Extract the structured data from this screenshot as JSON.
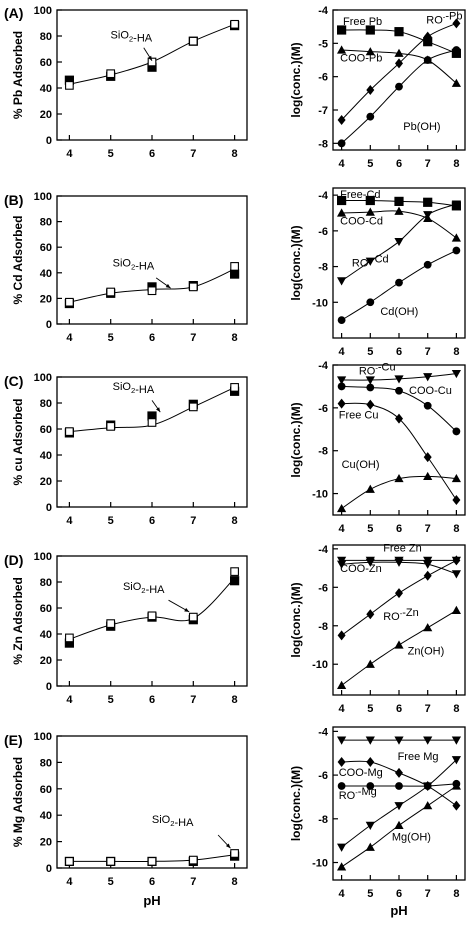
{
  "colors": {
    "marker": "#000000",
    "line": "#000000",
    "frame": "#000000",
    "background": "#ffffff"
  },
  "chart_data": [
    {
      "type": "scatter",
      "panel_label": "(A)",
      "ylabel": "% Pb Adsorbed",
      "xlabel": "",
      "xlim": [
        3.7,
        8.3
      ],
      "ylim": [
        0,
        100
      ],
      "xticks": [
        "4",
        "5",
        "6",
        "7",
        "8"
      ],
      "yticks": [
        "0",
        "20",
        "40",
        "60",
        "80",
        "100"
      ],
      "x": [
        4,
        5,
        6,
        7,
        8
      ],
      "series": [
        {
          "marker": "filled-square",
          "values": [
            46,
            49,
            56,
            76,
            88
          ]
        },
        {
          "marker": "open-square",
          "values": [
            42,
            51,
            60,
            76,
            89
          ]
        }
      ],
      "fit_curve": {
        "x": [
          4,
          5,
          6,
          7,
          8
        ],
        "values": [
          43,
          50,
          60,
          76,
          89
        ]
      },
      "annotations": [
        {
          "text": "SiO₂-HA"
        }
      ]
    },
    {
      "type": "line",
      "panel_label": "",
      "ylabel": "log(conc.)(M)",
      "xlabel": "",
      "xlim": [
        3.7,
        8.3
      ],
      "ylim": [
        -8.2,
        -4
      ],
      "xticks": [
        "4",
        "5",
        "6",
        "7",
        "8"
      ],
      "yticks": [
        "-4",
        "-5",
        "-6",
        "-7",
        "-8"
      ],
      "x": [
        4,
        5,
        6,
        7,
        8
      ],
      "series": [
        {
          "name": "Free Pb",
          "marker": "filled-square",
          "values": [
            -4.6,
            -4.6,
            -4.65,
            -4.95,
            -5.3
          ]
        },
        {
          "name": "RO⁻-Pb",
          "marker": "filled-diamond",
          "values": [
            -7.3,
            -6.4,
            -5.6,
            -4.8,
            -4.4
          ]
        },
        {
          "name": "COO-Pb",
          "marker": "filled-triangle-up",
          "values": [
            -5.2,
            -5.25,
            -5.3,
            -5.5,
            -6.2
          ]
        },
        {
          "name": "Pb(OH)",
          "marker": "filled-circle",
          "values": [
            -8.0,
            -7.2,
            -6.3,
            -5.5,
            -5.2
          ]
        }
      ]
    },
    {
      "type": "scatter",
      "panel_label": "(B)",
      "ylabel": "% Cd  Adsorbed",
      "xlabel": "",
      "xlim": [
        3.7,
        8.3
      ],
      "ylim": [
        0,
        100
      ],
      "xticks": [
        "4",
        "5",
        "6",
        "7",
        "8"
      ],
      "yticks": [
        "0",
        "20",
        "40",
        "60",
        "80",
        "100"
      ],
      "x": [
        4,
        5,
        6,
        7,
        8
      ],
      "series": [
        {
          "marker": "filled-square",
          "values": [
            16,
            24,
            29,
            30,
            39
          ]
        },
        {
          "marker": "open-square",
          "values": [
            17,
            25,
            26,
            29,
            45
          ]
        }
      ],
      "fit_curve": {
        "x": [
          4,
          5,
          6,
          7,
          8
        ],
        "values": [
          17,
          24,
          27,
          29,
          43
        ]
      },
      "annotations": [
        {
          "text": "SiO₂-HA"
        }
      ]
    },
    {
      "type": "line",
      "panel_label": "",
      "ylabel": "log(conc.)(M)",
      "xlabel": "",
      "xlim": [
        3.7,
        8.3
      ],
      "ylim": [
        -12,
        -3.6
      ],
      "xticks": [
        "4",
        "5",
        "6",
        "7",
        "8"
      ],
      "yticks": [
        "-4",
        "-6",
        "-8",
        "-10"
      ],
      "x": [
        4,
        5,
        6,
        7,
        8
      ],
      "series": [
        {
          "name": "Free-Cd",
          "marker": "filled-square",
          "values": [
            -4.3,
            -4.3,
            -4.35,
            -4.4,
            -4.6
          ]
        },
        {
          "name": "COO-Cd",
          "marker": "filled-triangle-up",
          "values": [
            -5.0,
            -4.95,
            -4.9,
            -5.3,
            -6.4
          ]
        },
        {
          "name": "RO⁻-Cd",
          "marker": "filled-triangle-down",
          "values": [
            -8.8,
            -7.7,
            -6.6,
            -5.1,
            -4.5
          ]
        },
        {
          "name": "Cd(OH)",
          "marker": "filled-circle",
          "values": [
            -11.0,
            -10.0,
            -8.9,
            -7.9,
            -7.1
          ]
        }
      ]
    },
    {
      "type": "scatter",
      "panel_label": "(C)",
      "ylabel": "% cu  Adsorbed",
      "xlabel": "",
      "xlim": [
        3.7,
        8.3
      ],
      "ylim": [
        0,
        100
      ],
      "xticks": [
        "4",
        "5",
        "6",
        "7",
        "8"
      ],
      "yticks": [
        "0",
        "20",
        "40",
        "60",
        "80",
        "100"
      ],
      "x": [
        4,
        5,
        6,
        7,
        8
      ],
      "series": [
        {
          "marker": "filled-square",
          "values": [
            57,
            63,
            70,
            79,
            89
          ]
        },
        {
          "marker": "open-square",
          "values": [
            58,
            62,
            65,
            77,
            92
          ]
        }
      ],
      "fit_curve": {
        "x": [
          4,
          5,
          6,
          7,
          8
        ],
        "values": [
          58,
          61,
          63,
          77,
          92
        ]
      },
      "annotations": [
        {
          "text": "SiO₂-HA"
        }
      ]
    },
    {
      "type": "line",
      "panel_label": "",
      "ylabel": "log(conc.)(M)",
      "xlabel": "",
      "xlim": [
        3.7,
        8.3
      ],
      "ylim": [
        -11,
        -4
      ],
      "xticks": [
        "4",
        "5",
        "6",
        "7",
        "8"
      ],
      "yticks": [
        "-4",
        "-6",
        "-8",
        "-10"
      ],
      "x": [
        4,
        5,
        6,
        7,
        8
      ],
      "series": [
        {
          "name": "RO⁻-Cu",
          "marker": "filled-triangle-down",
          "values": [
            -4.7,
            -4.7,
            -4.65,
            -4.55,
            -4.4
          ]
        },
        {
          "name": "COO-Cu",
          "marker": "filled-circle",
          "values": [
            -5.0,
            -5.05,
            -5.2,
            -5.9,
            -7.1
          ]
        },
        {
          "name": "Free Cu",
          "marker": "filled-diamond",
          "values": [
            -5.8,
            -5.85,
            -6.5,
            -8.3,
            -10.3
          ]
        },
        {
          "name": "Cu(OH)",
          "marker": "filled-triangle-up",
          "values": [
            -10.7,
            -9.8,
            -9.3,
            -9.2,
            -9.3
          ]
        }
      ]
    },
    {
      "type": "scatter",
      "panel_label": "(D)",
      "ylabel": "% Zn Adsorbed",
      "xlabel": "",
      "xlim": [
        3.7,
        8.3
      ],
      "ylim": [
        0,
        100
      ],
      "xticks": [
        "4",
        "5",
        "6",
        "7",
        "8"
      ],
      "yticks": [
        "0",
        "20",
        "40",
        "60",
        "80",
        "100"
      ],
      "x": [
        4,
        5,
        6,
        7,
        8
      ],
      "series": [
        {
          "marker": "filled-square",
          "values": [
            33,
            46,
            53,
            51,
            81
          ]
        },
        {
          "marker": "open-square",
          "values": [
            37,
            48,
            54,
            53,
            88
          ]
        }
      ],
      "fit_curve": {
        "x": [
          4,
          5,
          6,
          7,
          8
        ],
        "values": [
          36,
          47,
          53,
          52,
          83
        ]
      },
      "annotations": [
        {
          "text": "SiO₂-HA"
        }
      ]
    },
    {
      "type": "line",
      "panel_label": "",
      "ylabel": "log(conc.)(M)",
      "xlabel": "",
      "xlim": [
        3.7,
        8.3
      ],
      "ylim": [
        -11.6,
        -3.8
      ],
      "xticks": [
        "4",
        "5",
        "6",
        "7",
        "8"
      ],
      "yticks": [
        "-4",
        "-6",
        "-8",
        "-10"
      ],
      "x": [
        4,
        5,
        6,
        7,
        8
      ],
      "series": [
        {
          "name": "Free Zn",
          "marker": "filled-triangle-down",
          "values": [
            -4.6,
            -4.6,
            -4.6,
            -4.6,
            -4.6
          ]
        },
        {
          "name": "COO-Zn",
          "marker": "filled-triangle-down",
          "values": [
            -4.8,
            -4.7,
            -4.7,
            -4.8,
            -5.3
          ]
        },
        {
          "name": "RO⁻-Zn",
          "marker": "filled-diamond",
          "values": [
            -8.5,
            -7.4,
            -6.3,
            -5.4,
            -4.6
          ]
        },
        {
          "name": "Zn(OH)",
          "marker": "filled-triangle-up",
          "values": [
            -11.1,
            -10.0,
            -9.0,
            -8.1,
            -7.2
          ]
        }
      ]
    },
    {
      "type": "scatter",
      "panel_label": "(E)",
      "ylabel": "% Mg Adsorbed",
      "xlabel": "pH",
      "xlim": [
        3.7,
        8.3
      ],
      "ylim": [
        0,
        100
      ],
      "xticks": [
        "4",
        "5",
        "6",
        "7",
        "8"
      ],
      "yticks": [
        "0",
        "20",
        "40",
        "60",
        "80",
        "100"
      ],
      "x": [
        4,
        5,
        6,
        7,
        8
      ],
      "series": [
        {
          "marker": "filled-square",
          "values": [
            5,
            5,
            5,
            5,
            9
          ]
        },
        {
          "marker": "open-square",
          "values": [
            5,
            5,
            5,
            6,
            11
          ]
        }
      ],
      "fit_curve": {
        "x": [
          4,
          5,
          6,
          7,
          8
        ],
        "values": [
          5,
          5,
          5,
          6,
          10
        ]
      },
      "annotations": [
        {
          "text": "SiO₂-HA"
        }
      ]
    },
    {
      "type": "line",
      "panel_label": "",
      "ylabel": "log(conc.)(M)",
      "xlabel": "pH",
      "xlim": [
        3.7,
        8.3
      ],
      "ylim": [
        -10.8,
        -3.8
      ],
      "xticks": [
        "4",
        "5",
        "6",
        "7",
        "8"
      ],
      "yticks": [
        "-4",
        "-6",
        "-8",
        "-10"
      ],
      "x": [
        4,
        5,
        6,
        7,
        8
      ],
      "series": [
        {
          "name": "Free Mg",
          "marker": "filled-triangle-down",
          "values": [
            -4.4,
            -4.4,
            -4.4,
            -4.4,
            -4.4
          ]
        },
        {
          "name": "COO-Mg",
          "marker": "filled-diamond",
          "values": [
            -5.4,
            -5.4,
            -5.9,
            -6.5,
            -7.4
          ]
        },
        {
          "name": "RO⁻-Mg",
          "marker": "filled-circle",
          "values": [
            -6.5,
            -6.5,
            -6.5,
            -6.5,
            -6.4
          ]
        },
        {
          "name": "Mg(OH)",
          "marker": "filled-triangle-up",
          "values": [
            -10.2,
            -9.3,
            -8.3,
            -7.4,
            -6.5
          ]
        },
        {
          "name": "",
          "marker": "filled-triangle-down",
          "values": [
            -9.3,
            -8.3,
            -7.4,
            -6.5,
            -5.3
          ]
        }
      ]
    }
  ]
}
